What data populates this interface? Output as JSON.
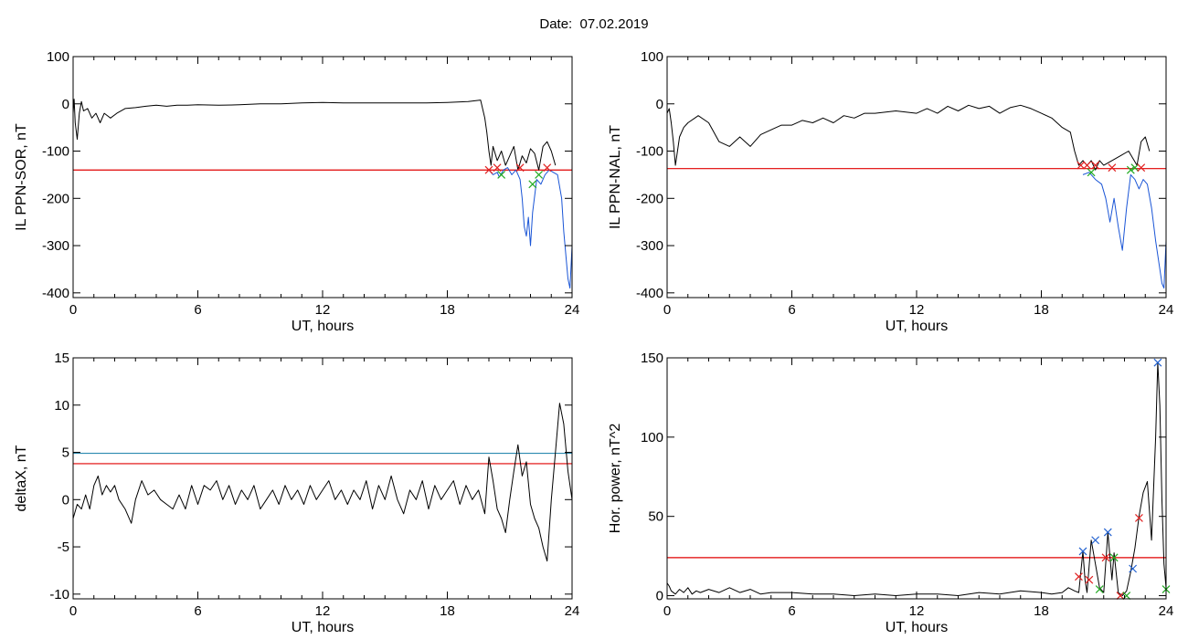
{
  "page": {
    "date_title": "Date:  07.02.2019"
  },
  "colors": {
    "signal": "#000000",
    "threshold_red": "#e00000",
    "threshold_blue": "#2a8ab0",
    "blue_segment": "#1a55d6",
    "marker_red": "#e02020",
    "marker_green": "#22aa22",
    "marker_blue": "#2060d0"
  },
  "chart_data": [
    {
      "id": "il-sor",
      "type": "line",
      "title": "",
      "xlabel": "UT, hours",
      "ylabel": "IL PPN-SOR, nT",
      "xlim": [
        0,
        24
      ],
      "ylim": [
        -410,
        100
      ],
      "xticks": [
        0,
        6,
        12,
        18,
        24
      ],
      "yticks": [
        100,
        0,
        -100,
        -200,
        -300,
        -400
      ],
      "grid": false,
      "hlines": [
        {
          "y": -140,
          "color": "threshold_red"
        }
      ],
      "series": [
        {
          "x": [
            0,
            0.05,
            0.1,
            0.2,
            0.3,
            0.4,
            0.5,
            0.7,
            0.9,
            1.1,
            1.3,
            1.5,
            1.8,
            2.1,
            2.5,
            3,
            3.5,
            4,
            4.5,
            5,
            5.5,
            6,
            7,
            8,
            9,
            10,
            11,
            12,
            13,
            14,
            15,
            16,
            17,
            18,
            19,
            19.6,
            19.8,
            19.9,
            20,
            20.1,
            20.2,
            20.4,
            20.6,
            20.8,
            21,
            21.2,
            21.4,
            21.6,
            21.8,
            22,
            22.2,
            22.4,
            22.6,
            22.8,
            23,
            23.2
          ],
          "y": [
            -20,
            10,
            -40,
            -75,
            -20,
            5,
            -15,
            -10,
            -30,
            -20,
            -40,
            -20,
            -30,
            -20,
            -10,
            -8,
            -5,
            -3,
            -5,
            -3,
            -3,
            -2,
            -3,
            -2,
            0,
            0,
            2,
            3,
            2,
            2,
            2,
            2,
            2,
            3,
            5,
            8,
            -30,
            -60,
            -100,
            -130,
            -90,
            -120,
            -100,
            -130,
            -110,
            -90,
            -140,
            -110,
            -125,
            -95,
            -105,
            -140,
            -90,
            -80,
            -100,
            -130
          ],
          "color": "signal"
        },
        {
          "x": [
            20,
            20.2,
            20.4,
            20.5,
            20.7,
            20.9,
            21.1,
            21.3,
            21.5,
            21.6,
            21.7,
            21.8,
            21.9,
            22.0,
            22.1,
            22.3,
            22.5,
            22.7,
            22.9,
            23.1,
            23.3,
            23.5,
            23.6,
            23.7,
            23.8,
            23.9,
            24
          ],
          "y": [
            -140,
            -150,
            -145,
            -155,
            -140,
            -135,
            -150,
            -140,
            -160,
            -200,
            -260,
            -280,
            -240,
            -300,
            -230,
            -160,
            -170,
            -150,
            -140,
            -145,
            -150,
            -200,
            -270,
            -320,
            -370,
            -390,
            -300
          ],
          "color": "blue_segment"
        }
      ],
      "markers": [
        {
          "x": 20.0,
          "y": -140,
          "color": "marker_red"
        },
        {
          "x": 20.4,
          "y": -135,
          "color": "marker_red"
        },
        {
          "x": 20.6,
          "y": -150,
          "color": "marker_green"
        },
        {
          "x": 21.5,
          "y": -135,
          "color": "marker_red"
        },
        {
          "x": 22.1,
          "y": -170,
          "color": "marker_green"
        },
        {
          "x": 22.4,
          "y": -150,
          "color": "marker_green"
        },
        {
          "x": 22.8,
          "y": -135,
          "color": "marker_red"
        }
      ]
    },
    {
      "id": "il-nal",
      "type": "line",
      "title": "",
      "xlabel": "UT, hours",
      "ylabel": "IL PPN-NAL, nT",
      "xlim": [
        0,
        24
      ],
      "ylim": [
        -410,
        100
      ],
      "xticks": [
        0,
        6,
        12,
        18,
        24
      ],
      "yticks": [
        100,
        0,
        -100,
        -200,
        -300,
        -400
      ],
      "grid": false,
      "hlines": [
        {
          "y": -137,
          "color": "threshold_red"
        }
      ],
      "series": [
        {
          "x": [
            0,
            0.1,
            0.2,
            0.3,
            0.4,
            0.6,
            0.8,
            1,
            1.5,
            2,
            2.5,
            3,
            3.5,
            4,
            4.5,
            5,
            5.5,
            6,
            6.5,
            7,
            7.5,
            8,
            8.5,
            9,
            9.5,
            10,
            11,
            12,
            12.5,
            13,
            13.5,
            14,
            14.5,
            15,
            15.5,
            16,
            16.5,
            17,
            17.5,
            18,
            18.5,
            19,
            19.4,
            19.6,
            19.8,
            20,
            20.2,
            20.4,
            20.6,
            20.8,
            21,
            21.4,
            21.8,
            22.2,
            22.6,
            22.8,
            23,
            23.2
          ],
          "y": [
            -20,
            -10,
            -40,
            -80,
            -130,
            -70,
            -50,
            -40,
            -25,
            -40,
            -80,
            -90,
            -70,
            -90,
            -65,
            -55,
            -45,
            -45,
            -35,
            -40,
            -30,
            -40,
            -25,
            -30,
            -20,
            -20,
            -15,
            -20,
            -10,
            -20,
            -5,
            -15,
            -3,
            -10,
            -5,
            -20,
            -8,
            -3,
            -10,
            -20,
            -30,
            -50,
            -60,
            -100,
            -130,
            -120,
            -130,
            -120,
            -140,
            -120,
            -130,
            -120,
            -110,
            -100,
            -130,
            -80,
            -70,
            -100
          ],
          "color": "signal"
        },
        {
          "x": [
            20,
            20.3,
            20.6,
            20.9,
            21.1,
            21.3,
            21.5,
            21.7,
            21.9,
            22.1,
            22.3,
            22.5,
            22.7,
            22.9,
            23.1,
            23.3,
            23.5,
            23.7,
            23.8,
            23.9,
            24
          ],
          "y": [
            -150,
            -145,
            -160,
            -170,
            -200,
            -250,
            -200,
            -260,
            -310,
            -220,
            -150,
            -160,
            -180,
            -160,
            -170,
            -220,
            -290,
            -350,
            -380,
            -390,
            -290
          ],
          "color": "blue_segment"
        }
      ],
      "markers": [
        {
          "x": 19.9,
          "y": -130,
          "color": "marker_red"
        },
        {
          "x": 20.2,
          "y": -130,
          "color": "marker_red"
        },
        {
          "x": 20.4,
          "y": -145,
          "color": "marker_green"
        },
        {
          "x": 20.6,
          "y": -130,
          "color": "marker_red"
        },
        {
          "x": 21.4,
          "y": -135,
          "color": "marker_red"
        },
        {
          "x": 22.3,
          "y": -140,
          "color": "marker_green"
        },
        {
          "x": 22.5,
          "y": -135,
          "color": "marker_green"
        },
        {
          "x": 22.8,
          "y": -135,
          "color": "marker_red"
        }
      ]
    },
    {
      "id": "deltax",
      "type": "line",
      "title": "",
      "xlabel": "UT, hours",
      "ylabel": "deltaX, nT",
      "xlim": [
        0,
        24
      ],
      "ylim": [
        -10.5,
        15
      ],
      "xticks": [
        0,
        6,
        12,
        18,
        24
      ],
      "yticks": [
        15,
        10,
        5,
        0,
        -5,
        -10
      ],
      "grid": false,
      "hlines": [
        {
          "y": 4.9,
          "color": "threshold_blue"
        },
        {
          "y": 3.8,
          "color": "threshold_red"
        }
      ],
      "series": [
        {
          "x": [
            0,
            0.2,
            0.4,
            0.6,
            0.8,
            1.0,
            1.2,
            1.4,
            1.6,
            1.8,
            2.0,
            2.2,
            2.5,
            2.8,
            3.0,
            3.3,
            3.6,
            3.9,
            4.2,
            4.5,
            4.8,
            5.1,
            5.4,
            5.7,
            6.0,
            6.3,
            6.6,
            6.9,
            7.2,
            7.5,
            7.8,
            8.1,
            8.4,
            8.7,
            9.0,
            9.3,
            9.6,
            9.9,
            10.2,
            10.5,
            10.8,
            11.1,
            11.4,
            11.7,
            12.0,
            12.3,
            12.6,
            12.9,
            13.2,
            13.5,
            13.8,
            14.1,
            14.4,
            14.7,
            15.0,
            15.3,
            15.6,
            15.9,
            16.2,
            16.5,
            16.8,
            17.1,
            17.4,
            17.7,
            18.0,
            18.3,
            18.6,
            18.9,
            19.2,
            19.5,
            19.8,
            20.0,
            20.2,
            20.4,
            20.6,
            20.8,
            21.0,
            21.2,
            21.4,
            21.6,
            21.8,
            22.0,
            22.2,
            22.4,
            22.6,
            22.8,
            23.0,
            23.2,
            23.4,
            23.6,
            23.8,
            24.0
          ],
          "y": [
            -2,
            -0.5,
            -1,
            0.5,
            -1,
            1.5,
            2.5,
            0.5,
            1.5,
            0.8,
            1.5,
            0,
            -1,
            -2.5,
            0,
            2,
            0.5,
            1,
            0,
            -0.5,
            -1,
            0.5,
            -1,
            1.5,
            -0.5,
            1.5,
            1,
            2,
            0,
            1.5,
            -0.5,
            1,
            0,
            1.5,
            -1,
            0,
            1,
            -0.5,
            1.5,
            0,
            1,
            -0.5,
            1.5,
            0,
            1,
            2,
            0,
            1,
            -0.5,
            1,
            0,
            2,
            -1,
            1.5,
            0,
            2.5,
            0,
            -1.5,
            1,
            0,
            2,
            -1,
            1.5,
            0,
            1,
            2,
            -0.5,
            1.5,
            0,
            1,
            -1.5,
            4.5,
            2,
            -1,
            -2,
            -3.5,
            0,
            3,
            5.8,
            2.5,
            4,
            -0.5,
            -2,
            -3,
            -5,
            -6.5,
            0,
            5,
            10.2,
            8,
            3,
            0
          ],
          "color": "signal"
        }
      ],
      "markers": []
    },
    {
      "id": "hor-power",
      "type": "line",
      "title": "",
      "xlabel": "UT, hours",
      "ylabel": "Hor. power, nT^2",
      "xlim": [
        0,
        24
      ],
      "ylim": [
        -2,
        150
      ],
      "xticks": [
        0,
        6,
        12,
        18,
        24
      ],
      "yticks": [
        150,
        100,
        50,
        0
      ],
      "grid": false,
      "hlines": [
        {
          "y": 24,
          "color": "threshold_red"
        }
      ],
      "series": [
        {
          "x": [
            0,
            0.1,
            0.2,
            0.4,
            0.6,
            0.8,
            1.0,
            1.2,
            1.4,
            1.6,
            2.0,
            2.5,
            3.0,
            3.5,
            4.0,
            4.5,
            5.0,
            6.0,
            7.0,
            8.0,
            9.0,
            10,
            11,
            12,
            13,
            14,
            15,
            16,
            17,
            18,
            18.5,
            19,
            19.3,
            19.6,
            19.8,
            20.0,
            20.1,
            20.2,
            20.4,
            20.6,
            20.8,
            21.0,
            21.2,
            21.4,
            21.5,
            21.7,
            21.9,
            22.1,
            22.3,
            22.5,
            22.7,
            22.9,
            23.1,
            23.3,
            23.5,
            23.6,
            23.7,
            23.8,
            23.9,
            24
          ],
          "y": [
            8,
            6,
            3,
            1,
            4,
            2,
            5,
            1,
            3,
            2,
            4,
            2,
            5,
            2,
            4,
            1,
            2,
            2,
            1,
            1,
            0,
            1,
            0,
            1,
            1,
            0,
            2,
            1,
            3,
            2,
            1,
            2,
            5,
            3,
            2,
            28,
            10,
            2,
            35,
            20,
            5,
            2,
            40,
            10,
            27,
            2,
            0,
            3,
            15,
            30,
            50,
            65,
            72,
            35,
            100,
            147,
            120,
            60,
            20,
            5
          ],
          "color": "signal"
        }
      ],
      "markers": [
        {
          "x": 19.8,
          "y": 12,
          "color": "marker_red"
        },
        {
          "x": 20.0,
          "y": 28,
          "color": "marker_blue"
        },
        {
          "x": 20.3,
          "y": 10,
          "color": "marker_red"
        },
        {
          "x": 20.6,
          "y": 35,
          "color": "marker_blue"
        },
        {
          "x": 20.8,
          "y": 4,
          "color": "marker_green"
        },
        {
          "x": 21.2,
          "y": 40,
          "color": "marker_blue"
        },
        {
          "x": 21.1,
          "y": 24,
          "color": "marker_red"
        },
        {
          "x": 21.5,
          "y": 24,
          "color": "marker_green"
        },
        {
          "x": 21.8,
          "y": 0,
          "color": "marker_red"
        },
        {
          "x": 22.1,
          "y": 0,
          "color": "marker_green"
        },
        {
          "x": 22.4,
          "y": 17,
          "color": "marker_blue"
        },
        {
          "x": 22.7,
          "y": 49,
          "color": "marker_red"
        },
        {
          "x": 23.6,
          "y": 147,
          "color": "marker_blue"
        },
        {
          "x": 24,
          "y": 4,
          "color": "marker_green"
        }
      ]
    }
  ]
}
